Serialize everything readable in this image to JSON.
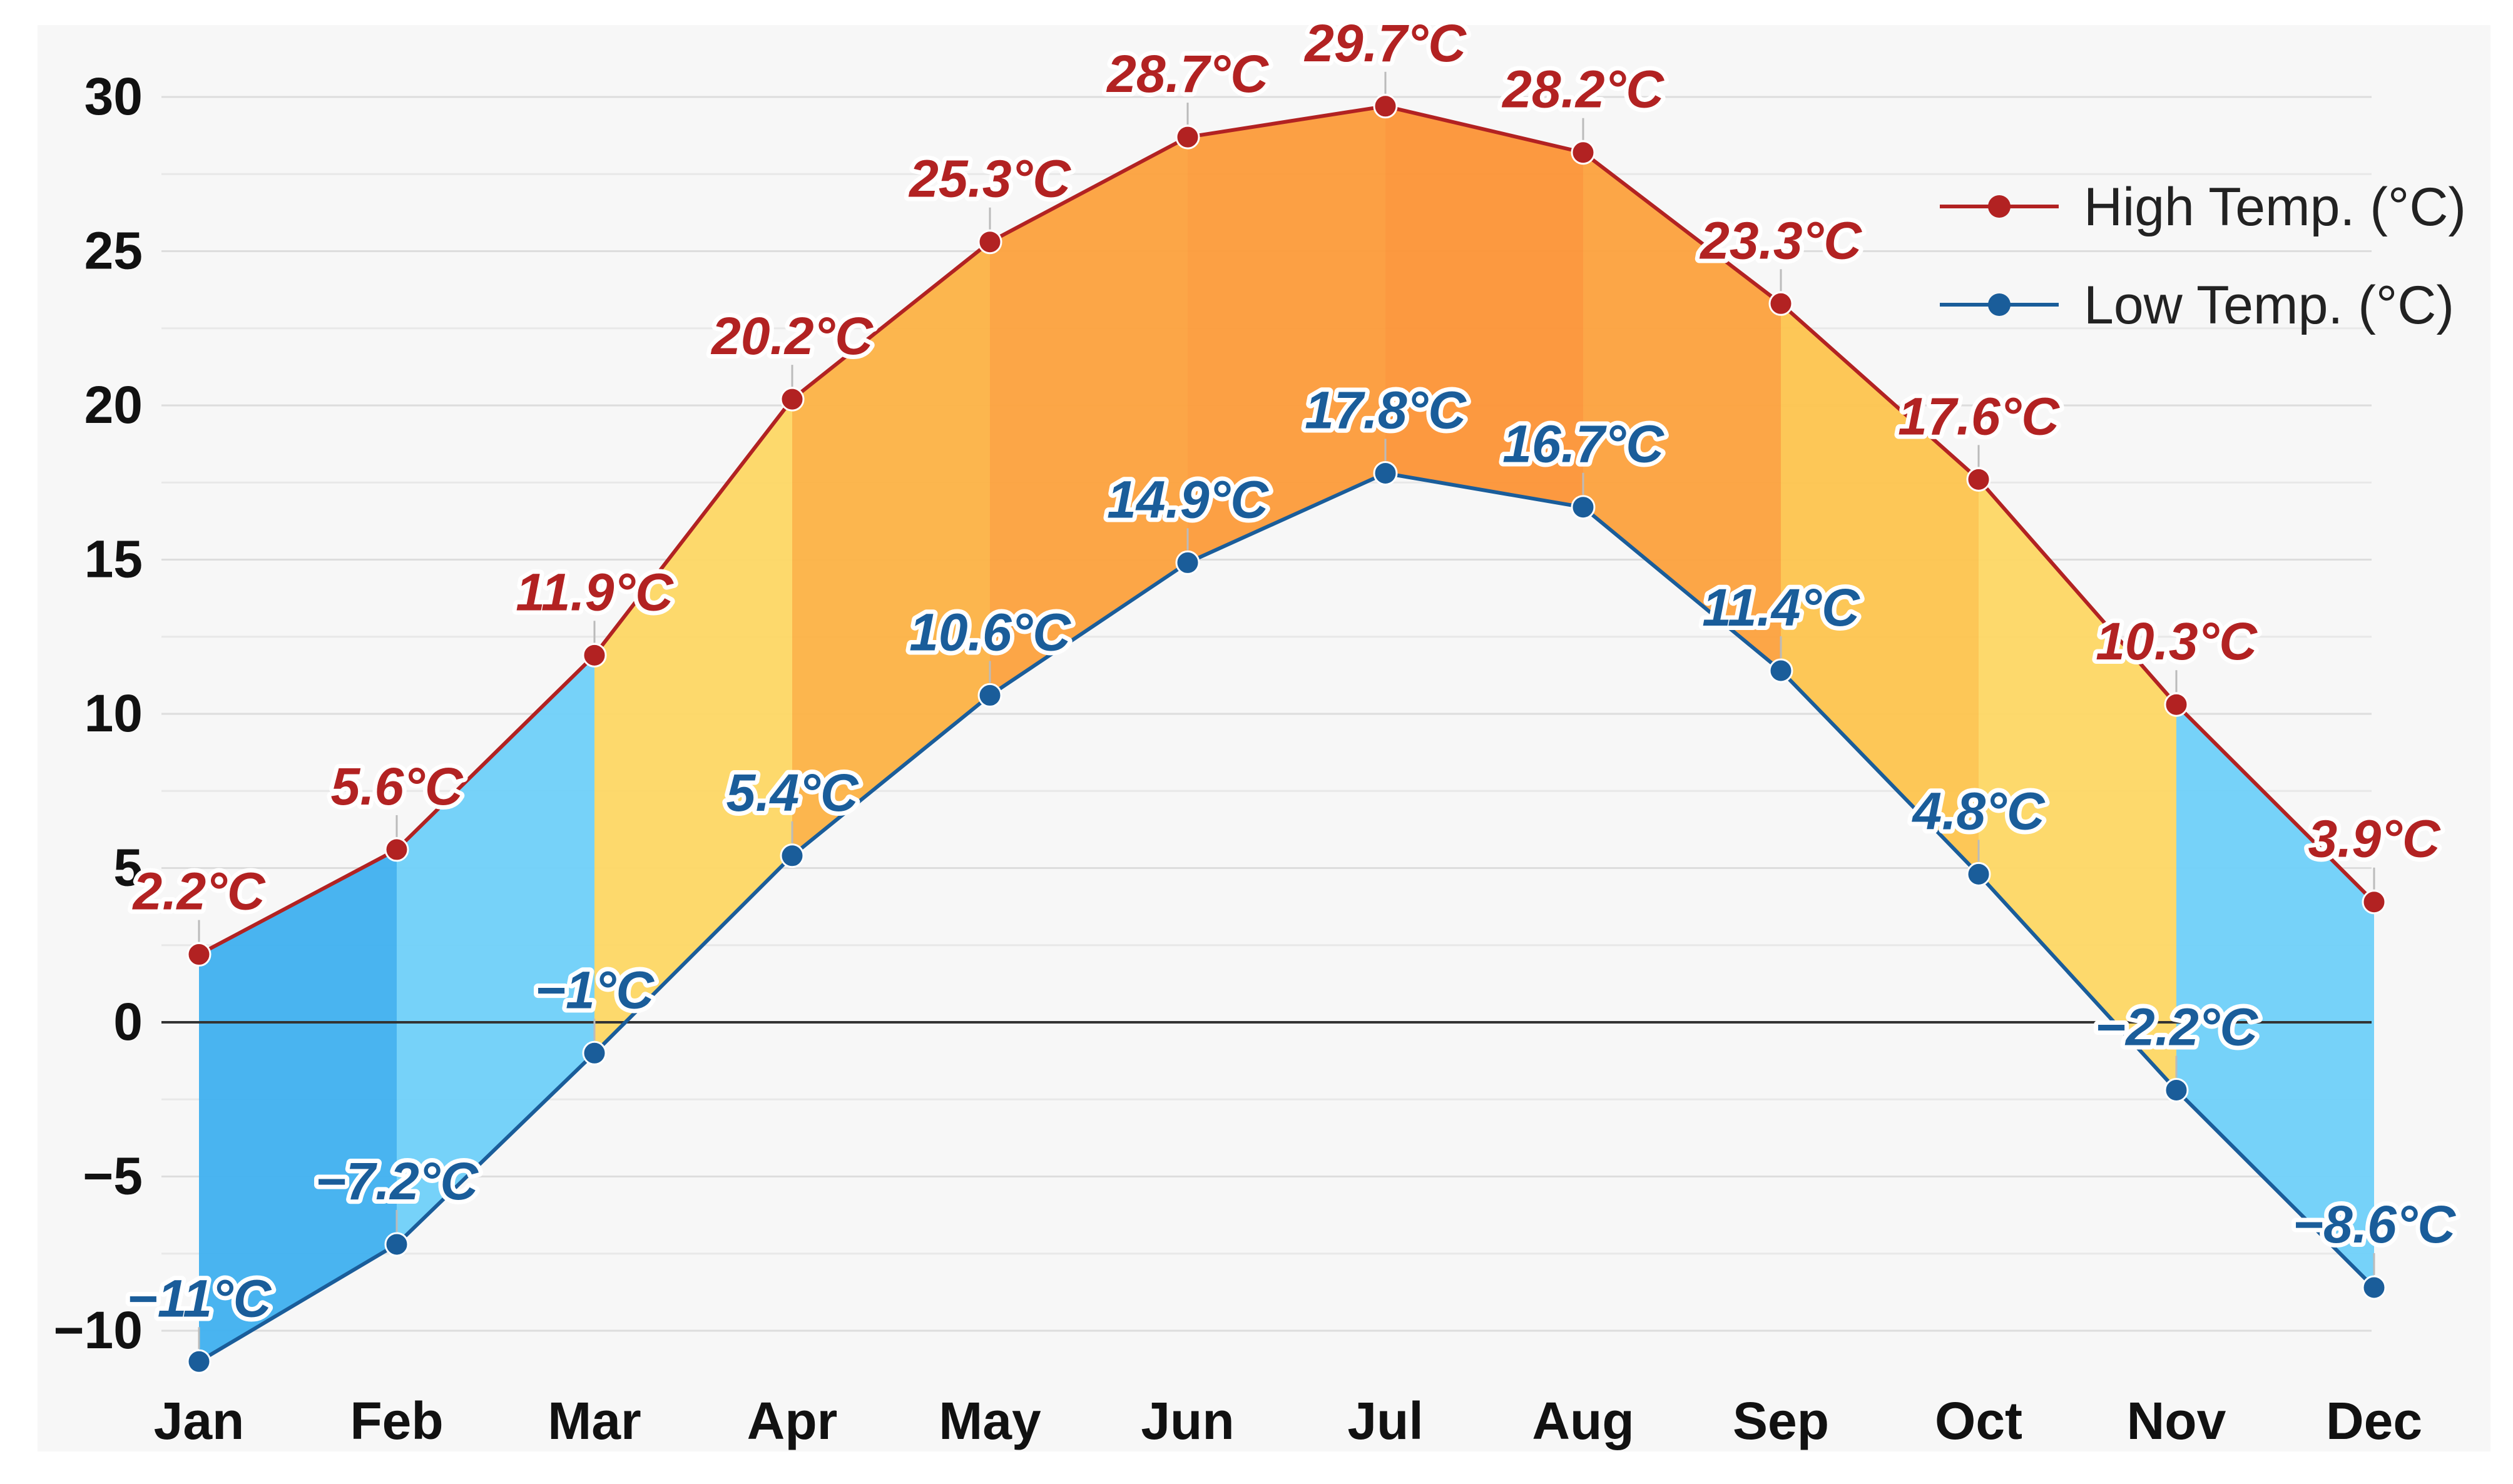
{
  "chart_data": {
    "type": "area",
    "categories": [
      "Jan",
      "Feb",
      "Mar",
      "Apr",
      "May",
      "Jun",
      "Jul",
      "Aug",
      "Sep",
      "Oct",
      "Nov",
      "Dec"
    ],
    "series": [
      {
        "name": "High Temp. (°C)",
        "values": [
          2.2,
          5.6,
          11.9,
          20.2,
          25.3,
          28.7,
          29.7,
          28.2,
          23.3,
          17.6,
          10.3,
          3.9
        ],
        "labels": [
          "2.2°C",
          "5.6°C",
          "11.9°C",
          "20.2°C",
          "25.3°C",
          "28.7°C",
          "29.7°C",
          "28.2°C",
          "23.3°C",
          "17.6°C",
          "10.3°C",
          "3.9°C"
        ],
        "color": "#b22222"
      },
      {
        "name": "Low Temp. (°C)",
        "values": [
          -11,
          -7.2,
          -1,
          5.4,
          10.6,
          14.9,
          17.8,
          16.7,
          11.4,
          4.8,
          -2.2,
          -8.6
        ],
        "labels": [
          "−11°C",
          "−7.2°C",
          "−1°C",
          "5.4°C",
          "10.6°C",
          "14.9°C",
          "17.8°C",
          "16.7°C",
          "11.4°C",
          "4.8°C",
          "−2.2°C",
          "−8.6°C"
        ],
        "color": "#1a5d9a"
      }
    ],
    "band_colors": [
      "#3fb0ef",
      "#6fd0f9",
      "#fdd764",
      "#fcb244",
      "#fca13d",
      "#fc9b3a",
      "#fc9436",
      "#fca13d",
      "#fdc44e",
      "#fdd764",
      "#6fd0f9",
      "#3fb0ef"
    ],
    "ylim": [
      -11,
      30.5
    ],
    "yticks": [
      30,
      25,
      20,
      15,
      10,
      5,
      0,
      -5,
      -10
    ],
    "ytick_labels": [
      "30",
      "25",
      "20",
      "15",
      "10",
      "5",
      "0",
      "−5",
      "−10"
    ],
    "grid": true,
    "legend_position": "top-right",
    "title": "",
    "xlabel": "",
    "ylabel": ""
  }
}
